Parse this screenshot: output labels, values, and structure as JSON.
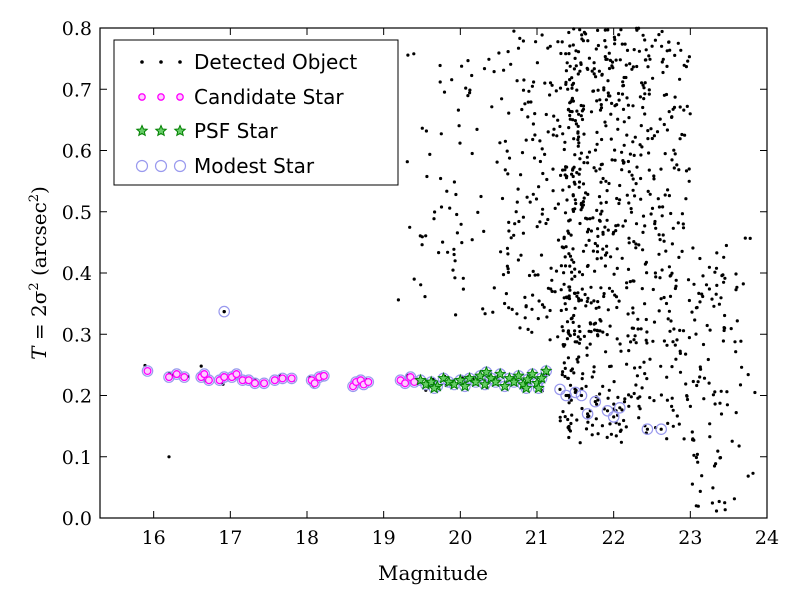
{
  "chart_data": {
    "type": "scatter",
    "title": "",
    "xlabel": "Magnitude",
    "ylabel": "T = 2σ² (arcsec²)",
    "ylabel_parts": {
      "lhs": "T",
      "eq": " = 2σ",
      "sup1": "2",
      "unit": " (arcsec",
      "sup2": "2",
      "close": ")"
    },
    "xlim": [
      15.3,
      24
    ],
    "ylim": [
      0.0,
      0.8
    ],
    "xticks": [
      16,
      17,
      18,
      19,
      20,
      21,
      22,
      23,
      24
    ],
    "yticks": [
      0.0,
      0.1,
      0.2,
      0.3,
      0.4,
      0.5,
      0.6,
      0.7,
      0.8
    ],
    "grid": false,
    "legend_position": "top-left",
    "series": [
      {
        "name": "Detected Object",
        "marker": "dot",
        "color": "#000000"
      },
      {
        "name": "Candidate Star",
        "marker": "circle-dot",
        "color": "#ff00ff"
      },
      {
        "name": "PSF Star",
        "marker": "star",
        "color": "#008000"
      },
      {
        "name": "Modest Star",
        "marker": "open-circle",
        "color": "#9999ee"
      }
    ],
    "stars": [
      [
        15.92,
        0.24
      ],
      [
        16.2,
        0.23
      ],
      [
        16.3,
        0.235
      ],
      [
        16.4,
        0.23
      ],
      [
        16.62,
        0.23
      ],
      [
        16.66,
        0.235
      ],
      [
        16.72,
        0.225
      ],
      [
        16.86,
        0.225
      ],
      [
        16.92,
        0.23
      ],
      [
        17.02,
        0.23
      ],
      [
        17.08,
        0.235
      ],
      [
        17.16,
        0.225
      ],
      [
        17.24,
        0.225
      ],
      [
        17.32,
        0.22
      ],
      [
        17.44,
        0.22
      ],
      [
        17.58,
        0.225
      ],
      [
        17.68,
        0.228
      ],
      [
        17.8,
        0.228
      ],
      [
        18.06,
        0.225
      ],
      [
        18.1,
        0.22
      ],
      [
        18.16,
        0.23
      ],
      [
        18.22,
        0.232
      ],
      [
        18.6,
        0.215
      ],
      [
        18.64,
        0.222
      ],
      [
        18.7,
        0.225
      ],
      [
        18.74,
        0.218
      ],
      [
        18.8,
        0.222
      ],
      [
        19.22,
        0.225
      ],
      [
        19.28,
        0.22
      ],
      [
        19.35,
        0.23
      ],
      [
        19.4,
        0.222
      ]
    ],
    "psf_stars": [
      [
        19.48,
        0.225
      ],
      [
        19.55,
        0.218
      ],
      [
        19.62,
        0.222
      ],
      [
        19.7,
        0.215
      ],
      [
        19.78,
        0.228
      ],
      [
        19.85,
        0.222
      ],
      [
        19.92,
        0.218
      ],
      [
        20.0,
        0.225
      ],
      [
        20.06,
        0.215
      ],
      [
        20.12,
        0.228
      ],
      [
        20.2,
        0.222
      ],
      [
        20.26,
        0.232
      ],
      [
        20.32,
        0.218
      ],
      [
        20.4,
        0.228
      ],
      [
        20.46,
        0.222
      ],
      [
        20.52,
        0.235
      ],
      [
        20.58,
        0.215
      ],
      [
        20.64,
        0.228
      ],
      [
        20.7,
        0.222
      ],
      [
        20.76,
        0.232
      ],
      [
        20.82,
        0.218
      ],
      [
        20.88,
        0.226
      ],
      [
        20.94,
        0.235
      ],
      [
        21.0,
        0.22
      ],
      [
        21.06,
        0.228
      ],
      [
        21.12,
        0.24
      ],
      [
        19.66,
        0.212
      ],
      [
        20.34,
        0.238
      ],
      [
        20.86,
        0.212
      ],
      [
        21.02,
        0.212
      ]
    ],
    "modest_only": [
      [
        21.3,
        0.21
      ],
      [
        21.38,
        0.2
      ],
      [
        21.5,
        0.205
      ],
      [
        21.58,
        0.2
      ],
      [
        21.66,
        0.17
      ],
      [
        21.76,
        0.19
      ],
      [
        21.92,
        0.175
      ],
      [
        22.0,
        0.165
      ],
      [
        22.08,
        0.18
      ],
      [
        22.44,
        0.145
      ],
      [
        22.62,
        0.145
      ],
      [
        16.92,
        0.337
      ]
    ],
    "annotations": []
  }
}
